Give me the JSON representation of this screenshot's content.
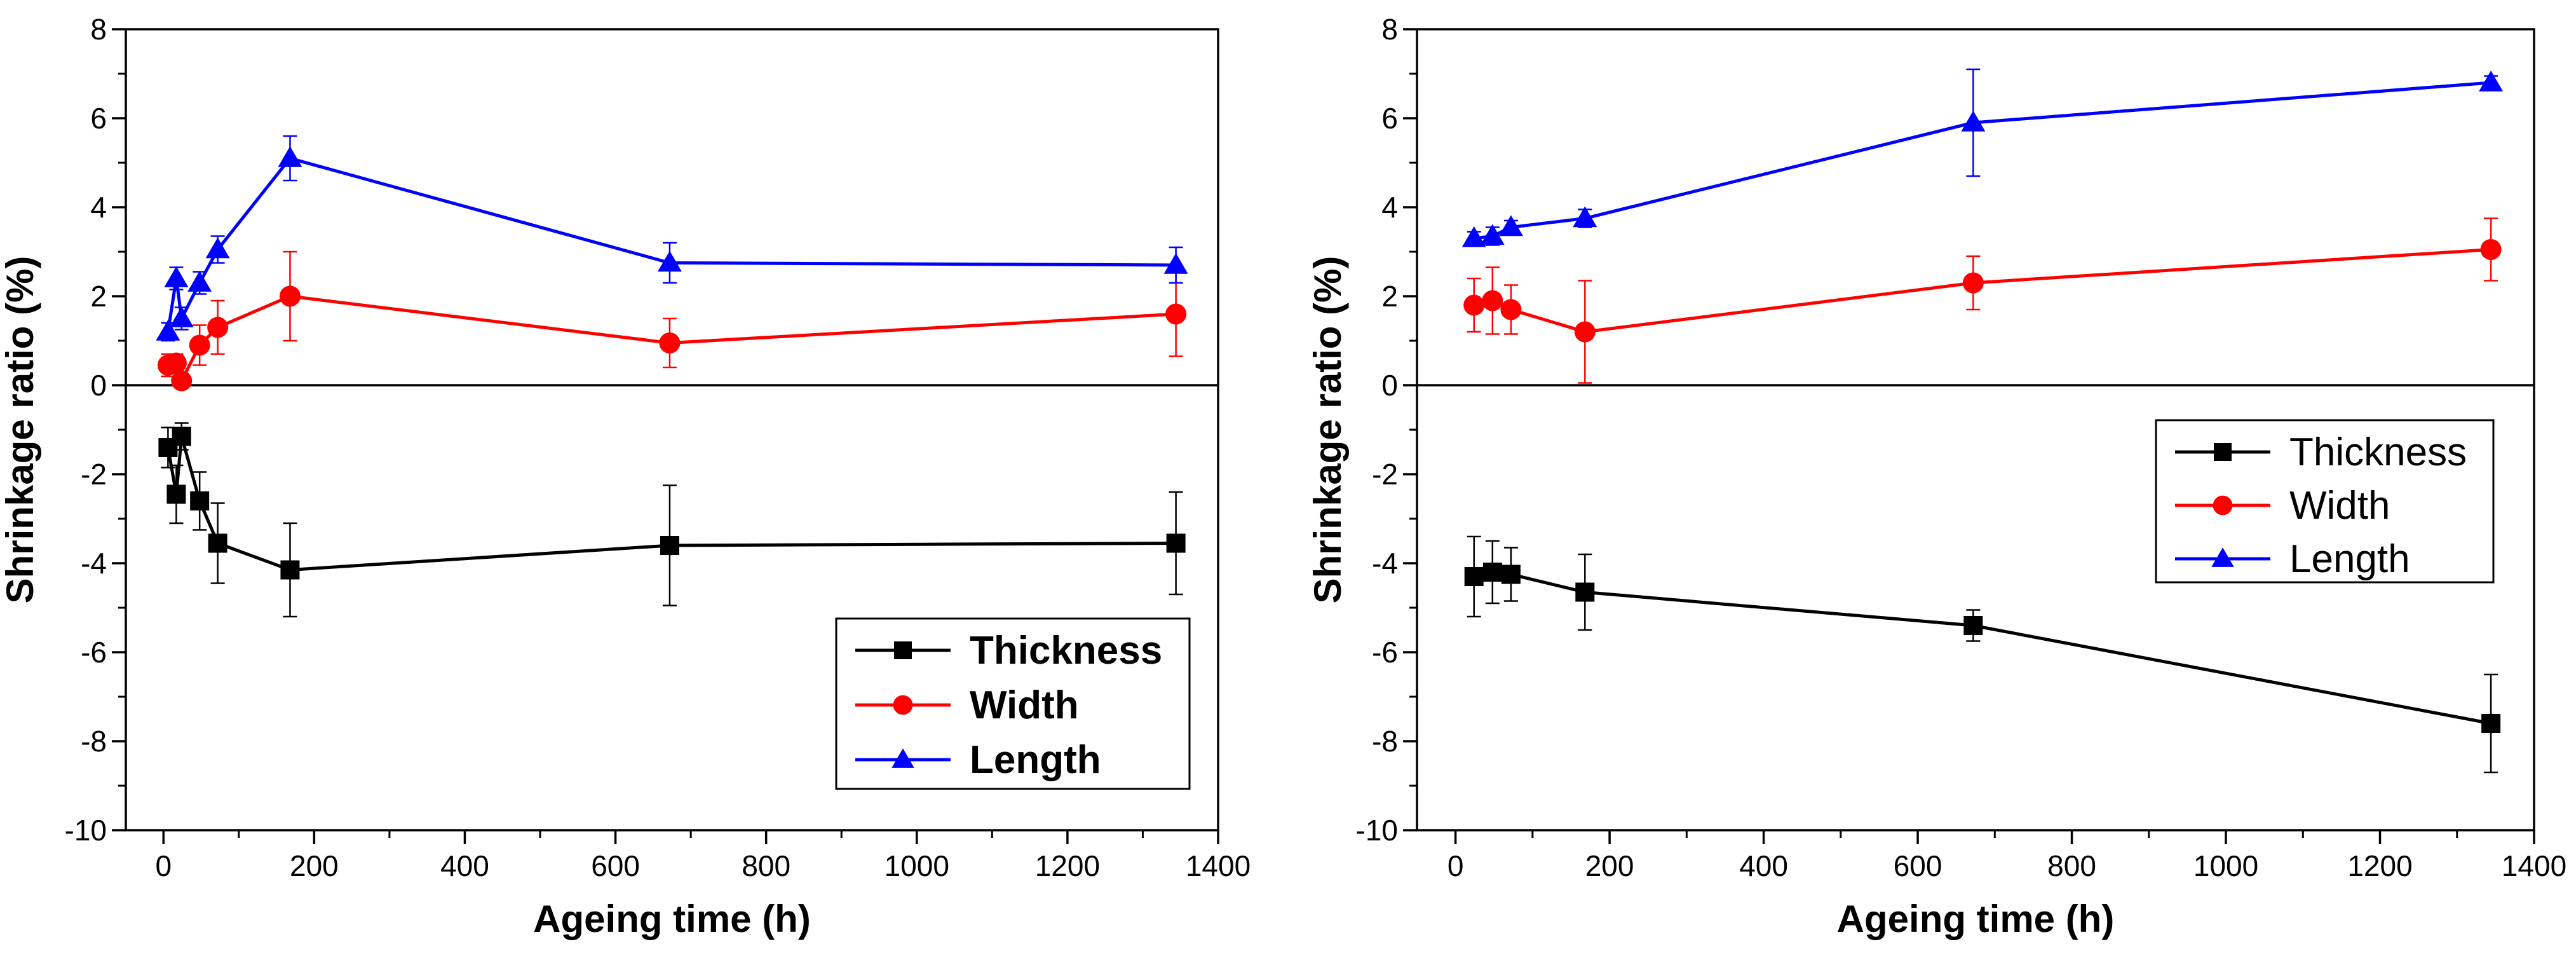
{
  "chart_data": [
    {
      "type": "line",
      "xlabel": "Ageing time (h)",
      "ylabel": "Shrinkage ratio (%)",
      "xlim": [
        -50,
        1400
      ],
      "ylim": [
        -10,
        8
      ],
      "xticks": [
        0,
        200,
        400,
        600,
        800,
        1000,
        1200,
        1400
      ],
      "yticks": [
        -10,
        -8,
        -6,
        -4,
        -2,
        0,
        2,
        4,
        6,
        8
      ],
      "xtick_labels": [
        "0",
        "200",
        "400",
        "600",
        "800",
        "1000",
        "1200",
        "1400"
      ],
      "ytick_labels": [
        "-10",
        "-8",
        "-6",
        "-4",
        "-2",
        "0",
        "2",
        "4",
        "6",
        "8"
      ],
      "zero_line": true,
      "legend": {
        "position": "bottom-right",
        "bold": true
      },
      "series": [
        {
          "name": "Thickness",
          "color": "#000000",
          "marker": "square",
          "x": [
            6,
            17,
            24,
            48,
            72,
            168,
            672,
            1344
          ],
          "y": [
            -1.4,
            -2.45,
            -1.15,
            -2.6,
            -3.55,
            -4.15,
            -3.6,
            -3.55
          ],
          "err": [
            0.45,
            0.65,
            0.3,
            0.65,
            0.9,
            1.05,
            1.35,
            1.15
          ]
        },
        {
          "name": "Width",
          "color": "#ff0000",
          "marker": "circle",
          "x": [
            6,
            17,
            24,
            48,
            72,
            168,
            672,
            1344
          ],
          "y": [
            0.45,
            0.5,
            0.1,
            0.9,
            1.3,
            2.0,
            0.95,
            1.6
          ],
          "err": [
            0.25,
            0.2,
            0.15,
            0.45,
            0.6,
            1.0,
            0.55,
            0.95
          ]
        },
        {
          "name": "Length",
          "color": "#0000ff",
          "marker": "triangle",
          "x": [
            6,
            17,
            24,
            48,
            72,
            168,
            672,
            1344
          ],
          "y": [
            1.2,
            2.4,
            1.5,
            2.3,
            3.05,
            5.1,
            2.75,
            2.7
          ],
          "err": [
            0.2,
            0.25,
            0.25,
            0.25,
            0.3,
            0.5,
            0.45,
            0.4
          ]
        }
      ]
    },
    {
      "type": "line",
      "xlabel": "Ageing time (h)",
      "ylabel": "Shrinkage ratio (%)",
      "xlim": [
        -50,
        1400
      ],
      "ylim": [
        -10,
        8
      ],
      "xticks": [
        0,
        200,
        400,
        600,
        800,
        1000,
        1200,
        1400
      ],
      "yticks": [
        -10,
        -8,
        -6,
        -4,
        -2,
        0,
        2,
        4,
        6,
        8
      ],
      "xtick_labels": [
        "0",
        "200",
        "400",
        "600",
        "800",
        "1000",
        "1200",
        "1400"
      ],
      "ytick_labels": [
        "-10",
        "-8",
        "-6",
        "-4",
        "-2",
        "0",
        "2",
        "4",
        "6",
        "8"
      ],
      "zero_line": true,
      "legend": {
        "position": "center-right",
        "bold": false
      },
      "series": [
        {
          "name": "Thickness",
          "color": "#000000",
          "marker": "square",
          "x": [
            24,
            48,
            72,
            168,
            672,
            1344
          ],
          "y": [
            -4.3,
            -4.2,
            -4.25,
            -4.65,
            -5.4,
            -7.6
          ],
          "err": [
            0.9,
            0.7,
            0.6,
            0.85,
            0.35,
            1.1
          ]
        },
        {
          "name": "Width",
          "color": "#ff0000",
          "marker": "circle",
          "x": [
            24,
            48,
            72,
            168,
            672,
            1344
          ],
          "y": [
            1.8,
            1.9,
            1.7,
            1.2,
            2.3,
            3.05
          ],
          "err": [
            0.6,
            0.75,
            0.55,
            1.15,
            0.6,
            0.7
          ]
        },
        {
          "name": "Length",
          "color": "#0000ff",
          "marker": "triangle",
          "x": [
            24,
            48,
            72,
            168,
            672,
            1344
          ],
          "y": [
            3.3,
            3.35,
            3.55,
            3.75,
            5.9,
            6.8
          ],
          "err": [
            0.15,
            0.2,
            0.15,
            0.2,
            1.2,
            0.15
          ]
        }
      ]
    }
  ]
}
